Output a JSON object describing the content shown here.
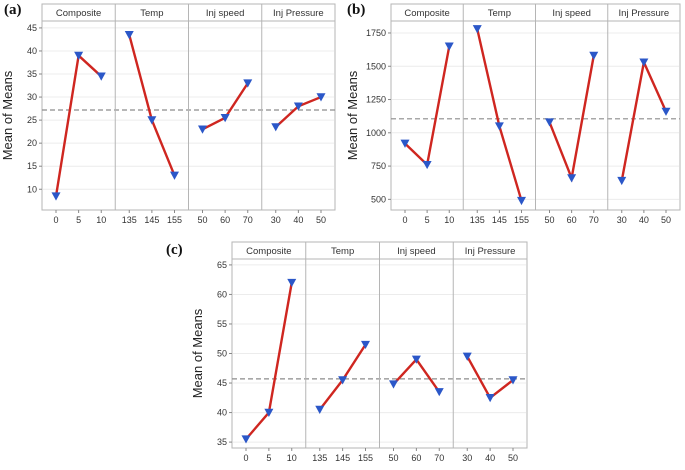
{
  "style": {
    "line_color": "#cf2620",
    "marker_color": "#2b57c8",
    "reference_color": "#8c8c8c",
    "border_color": "#b5b5b5",
    "grid_color": "#ececec",
    "text_color": "#333333"
  },
  "chart_data": [
    {
      "type": "line",
      "label": "(a)",
      "ylabel": "Mean of Means",
      "ylim": [
        5.5,
        46.5
      ],
      "yticks": [
        10,
        15,
        20,
        25,
        30,
        35,
        40,
        45
      ],
      "reference_line": 27.2,
      "grid": true,
      "legend": false,
      "marker": "triangle-down",
      "panels": [
        {
          "name": "Composite",
          "categories": [
            "0",
            "5",
            "10"
          ],
          "values": [
            8.5,
            39,
            34.5
          ]
        },
        {
          "name": "Temp",
          "categories": [
            "135",
            "145",
            "155"
          ],
          "values": [
            43.5,
            25,
            13
          ]
        },
        {
          "name": "Inj speed",
          "categories": [
            "50",
            "60",
            "70"
          ],
          "values": [
            23,
            25.5,
            33
          ]
        },
        {
          "name": "Inj Pressure",
          "categories": [
            "30",
            "40",
            "50"
          ],
          "values": [
            23.5,
            28,
            30
          ]
        }
      ]
    },
    {
      "type": "line",
      "label": "(b)",
      "ylabel": "Mean of Means",
      "ylim": [
        420,
        1840
      ],
      "yticks": [
        500,
        750,
        1000,
        1250,
        1500,
        1750
      ],
      "reference_line": 1105,
      "grid": true,
      "legend": false,
      "marker": "triangle-down",
      "panels": [
        {
          "name": "Composite",
          "categories": [
            "0",
            "5",
            "10"
          ],
          "values": [
            920,
            760,
            1650
          ]
        },
        {
          "name": "Temp",
          "categories": [
            "135",
            "145",
            "155"
          ],
          "values": [
            1780,
            1050,
            490
          ]
        },
        {
          "name": "Inj speed",
          "categories": [
            "50",
            "60",
            "70"
          ],
          "values": [
            1080,
            660,
            1580
          ]
        },
        {
          "name": "Inj Pressure",
          "categories": [
            "30",
            "40",
            "50"
          ],
          "values": [
            640,
            1530,
            1160
          ]
        }
      ]
    },
    {
      "type": "line",
      "label": "(c)",
      "ylabel": "Mean of Means",
      "ylim": [
        34,
        66
      ],
      "yticks": [
        35,
        40,
        45,
        50,
        55,
        60,
        65
      ],
      "reference_line": 45.7,
      "grid": true,
      "legend": false,
      "marker": "triangle-down",
      "panels": [
        {
          "name": "Composite",
          "categories": [
            "0",
            "5",
            "10"
          ],
          "values": [
            35.5,
            40,
            62
          ]
        },
        {
          "name": "Temp",
          "categories": [
            "135",
            "145",
            "155"
          ],
          "values": [
            40.5,
            45.5,
            51.5
          ]
        },
        {
          "name": "Inj speed",
          "categories": [
            "50",
            "60",
            "70"
          ],
          "values": [
            44.8,
            49,
            43.5
          ]
        },
        {
          "name": "Inj Pressure",
          "categories": [
            "30",
            "40",
            "50"
          ],
          "values": [
            49.5,
            42.5,
            45.5
          ]
        }
      ]
    }
  ]
}
